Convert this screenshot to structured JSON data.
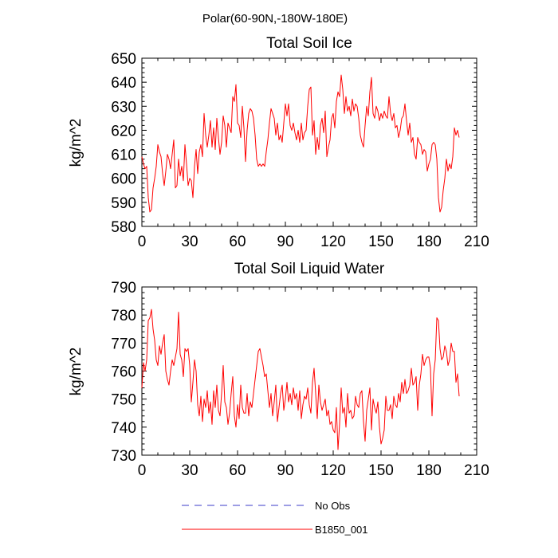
{
  "figure_title": "Polar(60-90N,-180W-180E)",
  "chart_data": [
    {
      "type": "line",
      "title": "Total Soil Ice",
      "xlabel": "",
      "ylabel": "kg/m^2",
      "xlim": [
        0,
        210
      ],
      "ylim": [
        580,
        650
      ],
      "xticks": [
        0,
        30,
        60,
        90,
        120,
        150,
        180,
        210
      ],
      "yticks": [
        580,
        590,
        600,
        610,
        620,
        630,
        640,
        650
      ],
      "series": [
        {
          "name": "B1850_001",
          "color": "#ff0000",
          "x": [
            0,
            1,
            2,
            3,
            4,
            5,
            6,
            7,
            8,
            9,
            10,
            11,
            12,
            13,
            14,
            15,
            16,
            17,
            18,
            19,
            20,
            21,
            22,
            23,
            24,
            25,
            26,
            27,
            28,
            29,
            30,
            31,
            32,
            33,
            34,
            35,
            36,
            37,
            38,
            39,
            40,
            41,
            42,
            43,
            44,
            45,
            46,
            47,
            48,
            49,
            50,
            51,
            52,
            53,
            54,
            55,
            56,
            57,
            58,
            59,
            60,
            61,
            62,
            63,
            64,
            65,
            66,
            67,
            68,
            69,
            70,
            71,
            72,
            73,
            74,
            75,
            76,
            77,
            78,
            79,
            80,
            81,
            82,
            83,
            84,
            85,
            86,
            87,
            88,
            89,
            90,
            91,
            92,
            93,
            94,
            95,
            96,
            97,
            98,
            99,
            100,
            101,
            102,
            103,
            104,
            105,
            106,
            107,
            108,
            109,
            110,
            111,
            112,
            113,
            114,
            115,
            116,
            117,
            118,
            119,
            120,
            121,
            122,
            123,
            124,
            125,
            126,
            127,
            128,
            129,
            130,
            131,
            132,
            133,
            134,
            135,
            136,
            137,
            138,
            139,
            140,
            141,
            142,
            143,
            144,
            145,
            146,
            147,
            148,
            149,
            150,
            151,
            152,
            153,
            154,
            155,
            156,
            157,
            158,
            159,
            160,
            161,
            162,
            163,
            164,
            165,
            166,
            167,
            168,
            169,
            170,
            171,
            172,
            173,
            174,
            175,
            176,
            177,
            178,
            179,
            180,
            181,
            182,
            183,
            184,
            185,
            186,
            187,
            188,
            189,
            190,
            191,
            192,
            193,
            194,
            195,
            196,
            197,
            198,
            199
          ],
          "values": [
            609,
            606,
            604,
            605,
            592,
            586,
            587,
            596,
            600,
            605,
            614,
            611,
            609,
            602,
            597,
            603,
            610,
            608,
            604,
            610,
            616,
            596,
            597,
            608,
            601,
            605,
            599,
            614,
            606,
            597,
            600,
            599,
            592,
            605,
            612,
            602,
            611,
            614,
            609,
            627,
            618,
            613,
            618,
            624,
            613,
            621,
            612,
            625,
            617,
            610,
            615,
            626,
            622,
            613,
            623,
            621,
            619,
            634,
            632,
            639,
            623,
            622,
            617,
            630,
            621,
            607,
            620,
            627,
            629,
            628,
            625,
            618,
            608,
            605,
            606,
            605,
            606,
            605,
            611,
            616,
            623,
            629,
            627,
            625,
            618,
            623,
            616,
            618,
            615,
            623,
            631,
            626,
            631,
            622,
            620,
            623,
            619,
            616,
            620,
            615,
            623,
            616,
            619,
            620,
            630,
            637,
            638,
            618,
            624,
            610,
            617,
            612,
            622,
            625,
            619,
            628,
            609,
            613,
            616,
            625,
            627,
            621,
            632,
            636,
            634,
            643,
            637,
            627,
            634,
            628,
            630,
            626,
            633,
            628,
            631,
            630,
            625,
            618,
            615,
            613,
            622,
            630,
            626,
            636,
            642,
            627,
            625,
            630,
            628,
            624,
            627,
            625,
            628,
            626,
            625,
            634,
            627,
            624,
            627,
            621,
            622,
            617,
            620,
            625,
            626,
            631,
            624,
            618,
            623,
            615,
            617,
            610,
            608,
            617,
            615,
            614,
            610,
            612,
            611,
            603,
            606,
            608,
            614,
            615,
            614,
            608,
            592,
            586,
            588,
            595,
            600,
            608,
            603,
            606,
            604,
            609,
            621,
            618,
            620,
            617
          ]
        }
      ]
    },
    {
      "type": "line",
      "title": "Total Soil Liquid Water",
      "xlabel": "",
      "ylabel": "kg/m^2",
      "xlim": [
        0,
        210
      ],
      "ylim": [
        730,
        790
      ],
      "xticks": [
        0,
        30,
        60,
        90,
        120,
        150,
        180,
        210
      ],
      "yticks": [
        730,
        740,
        750,
        760,
        770,
        780,
        790
      ],
      "series": [
        {
          "name": "B1850_001",
          "color": "#ff0000",
          "x": [
            0,
            1,
            2,
            3,
            4,
            5,
            6,
            7,
            8,
            9,
            10,
            11,
            12,
            13,
            14,
            15,
            16,
            17,
            18,
            19,
            20,
            21,
            22,
            23,
            24,
            25,
            26,
            27,
            28,
            29,
            30,
            31,
            32,
            33,
            34,
            35,
            36,
            37,
            38,
            39,
            40,
            41,
            42,
            43,
            44,
            45,
            46,
            47,
            48,
            49,
            50,
            51,
            52,
            53,
            54,
            55,
            56,
            57,
            58,
            59,
            60,
            61,
            62,
            63,
            64,
            65,
            66,
            67,
            68,
            69,
            70,
            71,
            72,
            73,
            74,
            75,
            76,
            77,
            78,
            79,
            80,
            81,
            82,
            83,
            84,
            85,
            86,
            87,
            88,
            89,
            90,
            91,
            92,
            93,
            94,
            95,
            96,
            97,
            98,
            99,
            100,
            101,
            102,
            103,
            104,
            105,
            106,
            107,
            108,
            109,
            110,
            111,
            112,
            113,
            114,
            115,
            116,
            117,
            118,
            119,
            120,
            121,
            122,
            123,
            124,
            125,
            126,
            127,
            128,
            129,
            130,
            131,
            132,
            133,
            134,
            135,
            136,
            137,
            138,
            139,
            140,
            141,
            142,
            143,
            144,
            145,
            146,
            147,
            148,
            149,
            150,
            151,
            152,
            153,
            154,
            155,
            156,
            157,
            158,
            159,
            160,
            161,
            162,
            163,
            164,
            165,
            166,
            167,
            168,
            169,
            170,
            171,
            172,
            173,
            174,
            175,
            176,
            177,
            178,
            179,
            180,
            181,
            182,
            183,
            184,
            185,
            186,
            187,
            188,
            189,
            190,
            191,
            192,
            193,
            194,
            195,
            196,
            197,
            198,
            199
          ],
          "values": [
            754,
            763,
            760,
            764,
            778,
            779,
            782,
            775,
            771,
            764,
            762,
            769,
            766,
            770,
            773,
            760,
            757,
            755,
            760,
            764,
            762,
            765,
            768,
            781,
            766,
            764,
            758,
            768,
            767,
            768,
            762,
            749,
            756,
            764,
            760,
            748,
            744,
            751,
            742,
            750,
            747,
            753,
            745,
            749,
            741,
            753,
            747,
            755,
            746,
            744,
            752,
            762,
            749,
            747,
            741,
            745,
            752,
            758,
            744,
            740,
            748,
            743,
            755,
            747,
            745,
            745,
            752,
            744,
            749,
            747,
            752,
            757,
            762,
            767,
            768,
            765,
            762,
            758,
            759,
            753,
            747,
            752,
            744,
            749,
            755,
            742,
            747,
            752,
            755,
            746,
            750,
            756,
            749,
            752,
            748,
            754,
            750,
            752,
            746,
            753,
            743,
            748,
            751,
            750,
            754,
            748,
            745,
            756,
            761,
            752,
            743,
            755,
            749,
            746,
            748,
            750,
            744,
            746,
            741,
            742,
            739,
            738,
            747,
            732,
            741,
            754,
            745,
            747,
            740,
            752,
            745,
            746,
            743,
            744,
            751,
            748,
            747,
            752,
            753,
            742,
            735,
            746,
            750,
            754,
            739,
            750,
            747,
            745,
            749,
            740,
            734,
            736,
            739,
            751,
            746,
            746,
            748,
            743,
            751,
            748,
            747,
            752,
            749,
            756,
            752,
            757,
            752,
            753,
            755,
            761,
            755,
            756,
            758,
            746,
            755,
            759,
            766,
            762,
            764,
            765,
            765,
            761,
            744,
            759,
            764,
            779,
            778,
            768,
            764,
            765,
            769,
            767,
            762,
            764,
            770,
            767,
            767,
            756,
            759,
            751
          ]
        }
      ]
    }
  ],
  "legend": {
    "items": [
      {
        "label": "No Obs",
        "color": "#3b3bc8",
        "style": "dashed"
      },
      {
        "label": "B1850_001",
        "color": "#ff0000",
        "style": "solid"
      }
    ]
  }
}
